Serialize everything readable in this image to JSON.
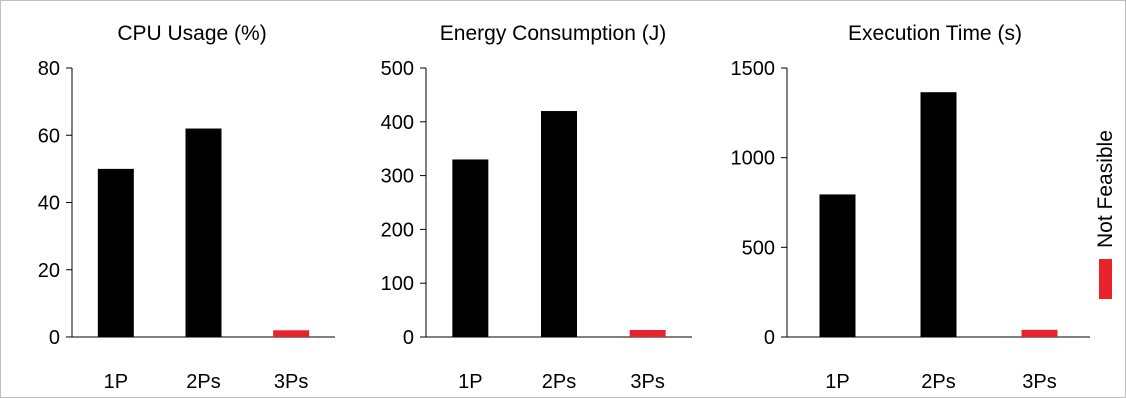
{
  "chart_data": [
    {
      "type": "bar",
      "title": "CPU Usage (%)",
      "categories": [
        "1P",
        "2Ps",
        "3Ps"
      ],
      "values": [
        50,
        62,
        2
      ],
      "infeasible": [
        false,
        false,
        true
      ],
      "ylim": [
        0,
        80
      ],
      "yticks": [
        0,
        20,
        40,
        60,
        80
      ],
      "xlabel": "",
      "ylabel": "",
      "grid": false
    },
    {
      "type": "bar",
      "title": "Energy Consumption (J)",
      "categories": [
        "1P",
        "2Ps",
        "3Ps"
      ],
      "values": [
        330,
        420,
        13
      ],
      "infeasible": [
        false,
        false,
        true
      ],
      "ylim": [
        0,
        500
      ],
      "yticks": [
        0,
        100,
        200,
        300,
        400,
        500
      ],
      "xlabel": "",
      "ylabel": "",
      "grid": false
    },
    {
      "type": "bar",
      "title": "Execution Time (s)",
      "categories": [
        "1P",
        "2Ps",
        "3Ps"
      ],
      "values": [
        795,
        1365,
        40
      ],
      "infeasible": [
        false,
        false,
        true
      ],
      "ylim": [
        0,
        1500
      ],
      "yticks": [
        0,
        500,
        1000,
        1500
      ],
      "xlabel": "",
      "ylabel": "",
      "grid": false
    }
  ],
  "legend": {
    "label": "Not Feasible",
    "color": "#e8232b",
    "placement": "right"
  },
  "colors": {
    "bar": "#000000",
    "infeasible": "#e8232b",
    "axis": "#000000"
  }
}
